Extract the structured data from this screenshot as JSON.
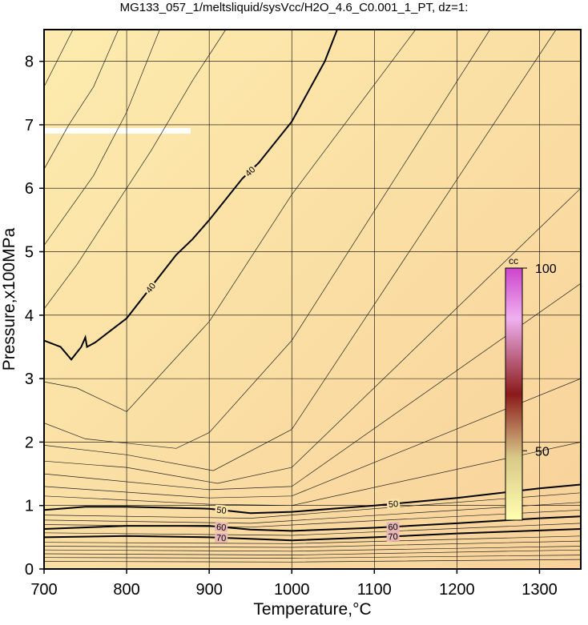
{
  "chart_data": {
    "type": "contour",
    "title": "MG133_057_1/meltsliquid/sysVcc/H2O_4.6_C0.001_1_PT, dz=1:",
    "x_label": "Temperature,°C",
    "y_label": "Pressure,x100MPa",
    "xlim": [
      700,
      1350
    ],
    "ylim": [
      0,
      8.5
    ],
    "xticks": [
      700,
      800,
      900,
      1000,
      1100,
      1200,
      1300
    ],
    "yticks": [
      0,
      1,
      2,
      3,
      4,
      5,
      6,
      7,
      8
    ],
    "grid": true,
    "contours": [
      {
        "level": 40,
        "x": [
          700,
          720,
          733,
          745,
          750,
          752,
          762,
          780,
          800,
          830,
          860,
          880,
          900,
          940,
          960,
          1000,
          1040,
          1055
        ],
        "y": [
          3.6,
          3.5,
          3.3,
          3.5,
          3.65,
          3.5,
          3.57,
          3.75,
          3.95,
          4.45,
          4.95,
          5.2,
          5.5,
          6.15,
          6.4,
          7.05,
          8.0,
          8.5
        ]
      },
      {
        "level": 50,
        "x": [
          700,
          750,
          800,
          900,
          950,
          1000,
          1100,
          1200,
          1300,
          1350
        ],
        "y": [
          0.93,
          0.98,
          0.98,
          0.95,
          0.88,
          0.9,
          1.0,
          1.12,
          1.27,
          1.33
        ]
      },
      {
        "level": 60,
        "x": [
          700,
          800,
          900,
          950,
          1000,
          1100,
          1200,
          1300,
          1350
        ],
        "y": [
          0.63,
          0.68,
          0.68,
          0.62,
          0.6,
          0.65,
          0.72,
          0.8,
          0.83
        ]
      },
      {
        "level": 70,
        "x": [
          700,
          800,
          900,
          1000,
          1100,
          1200,
          1350
        ],
        "y": [
          0.5,
          0.52,
          0.5,
          0.45,
          0.5,
          0.56,
          0.63
        ]
      }
    ],
    "thin_contours": [
      {
        "x": [
          700,
          735
        ],
        "y": [
          7.6,
          8.5
        ]
      },
      {
        "x": [
          700,
          730,
          760,
          790
        ],
        "y": [
          6.3,
          7.0,
          7.6,
          8.5
        ]
      },
      {
        "x": [
          700,
          760,
          800,
          840
        ],
        "y": [
          5.1,
          6.2,
          7.2,
          8.5
        ]
      },
      {
        "x": [
          700,
          740,
          790,
          830,
          880,
          920
        ],
        "y": [
          4.1,
          4.8,
          5.8,
          6.6,
          7.7,
          8.5
        ]
      },
      {
        "x": [
          700,
          740,
          800,
          900,
          1000,
          1150
        ],
        "y": [
          2.95,
          2.85,
          2.48,
          3.9,
          5.9,
          8.5
        ]
      },
      {
        "x": [
          700,
          750,
          860,
          900,
          1000,
          1240
        ],
        "y": [
          2.3,
          2.05,
          1.9,
          2.15,
          3.6,
          8.5
        ]
      },
      {
        "x": [
          700,
          800,
          905,
          1000,
          1320
        ],
        "y": [
          1.95,
          1.8,
          1.55,
          2.2,
          8.5
        ]
      },
      {
        "x": [
          700,
          800,
          910,
          1000,
          1350
        ],
        "y": [
          1.7,
          1.6,
          1.35,
          1.6,
          6.0
        ]
      },
      {
        "x": [
          700,
          900,
          1000,
          1350
        ],
        "y": [
          1.5,
          1.25,
          1.3,
          4.5
        ]
      },
      {
        "x": [
          700,
          900,
          1000,
          1350
        ],
        "y": [
          1.3,
          1.12,
          1.15,
          3.0
        ]
      },
      {
        "x": [
          700,
          900,
          1000,
          1350
        ],
        "y": [
          1.15,
          1.02,
          1.0,
          2.0
        ]
      },
      {
        "x": [
          700,
          950,
          1350
        ],
        "y": [
          0.85,
          0.8,
          1.2
        ]
      },
      {
        "x": [
          700,
          950,
          1350
        ],
        "y": [
          0.77,
          0.72,
          1.05
        ]
      },
      {
        "x": [
          700,
          950,
          1350
        ],
        "y": [
          0.7,
          0.66,
          0.93
        ]
      },
      {
        "x": [
          700,
          1000,
          1350
        ],
        "y": [
          0.57,
          0.53,
          0.72
        ]
      },
      {
        "x": [
          700,
          1000,
          1350
        ],
        "y": [
          0.42,
          0.4,
          0.52
        ]
      },
      {
        "x": [
          700,
          1000,
          1350
        ],
        "y": [
          0.36,
          0.34,
          0.44
        ]
      },
      {
        "x": [
          700,
          1000,
          1350
        ],
        "y": [
          0.3,
          0.28,
          0.36
        ]
      },
      {
        "x": [
          700,
          1000,
          1350
        ],
        "y": [
          0.24,
          0.22,
          0.3
        ]
      },
      {
        "x": [
          700,
          1000,
          1350
        ],
        "y": [
          0.18,
          0.17,
          0.22
        ]
      },
      {
        "x": [
          700,
          1000,
          1350
        ],
        "y": [
          0.12,
          0.11,
          0.15
        ]
      }
    ],
    "colorbar": {
      "label": "cc",
      "lim": [
        31,
        100
      ],
      "ticks": [
        50,
        100
      ]
    }
  }
}
